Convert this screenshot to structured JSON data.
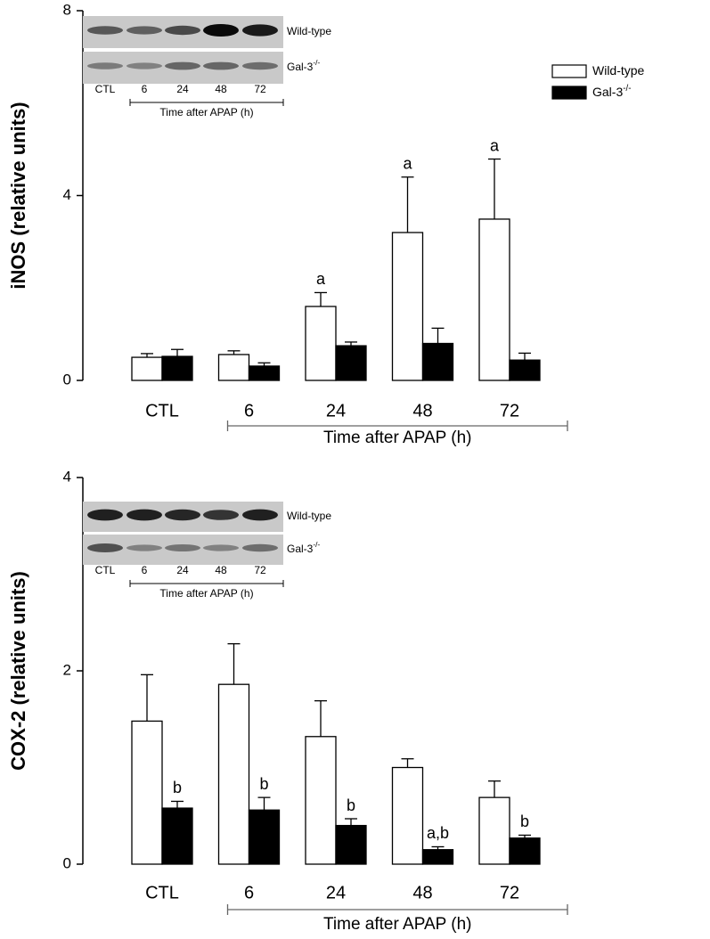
{
  "chart_data": [
    {
      "type": "bar",
      "ylabel": "iNOS (relative units)",
      "xlabel": "Time after APAP (h)",
      "categories": [
        "CTL",
        "6",
        "24",
        "48",
        "72"
      ],
      "ylim": [
        0,
        8
      ],
      "yticks": [
        0,
        4,
        8
      ],
      "legend": "upper right",
      "series": [
        {
          "name": "Wild-type",
          "color": "#ffffff",
          "values": [
            0.5,
            0.56,
            1.6,
            3.2,
            3.49
          ],
          "errors": [
            0.08,
            0.08,
            0.3,
            1.2,
            1.3
          ],
          "annotations": [
            null,
            null,
            "a",
            "a",
            "a"
          ]
        },
        {
          "name": "Gal-3",
          "name_superscript": "-/-",
          "color": "#000000",
          "values": [
            0.52,
            0.31,
            0.75,
            0.8,
            0.44
          ],
          "errors": [
            0.15,
            0.07,
            0.08,
            0.33,
            0.15
          ],
          "annotations": [
            null,
            null,
            null,
            null,
            null
          ]
        }
      ],
      "inset": {
        "rows": [
          {
            "name": "Wild-type"
          },
          {
            "name": "Gal-3",
            "superscript": "-/-"
          }
        ],
        "lanes": [
          "CTL",
          "6",
          "24",
          "48",
          "72"
        ],
        "label": "Time after APAP (h)"
      }
    },
    {
      "type": "bar",
      "ylabel": "COX-2 (relative units)",
      "xlabel": "Time after APAP (h)",
      "categories": [
        "CTL",
        "6",
        "24",
        "48",
        "72"
      ],
      "ylim": [
        0,
        4
      ],
      "yticks": [
        0,
        2,
        4
      ],
      "series": [
        {
          "color": "#ffffff",
          "values": [
            1.48,
            1.86,
            1.32,
            1.0,
            0.69
          ],
          "errors": [
            0.48,
            0.42,
            0.37,
            0.09,
            0.17
          ],
          "annotations": [
            null,
            null,
            null,
            null,
            null
          ]
        },
        {
          "color": "#000000",
          "values": [
            0.58,
            0.56,
            0.4,
            0.15,
            0.27
          ],
          "errors": [
            0.07,
            0.13,
            0.07,
            0.03,
            0.03
          ],
          "annotations": [
            "b",
            "b",
            "b",
            "a,b",
            "b"
          ]
        }
      ],
      "inset": {
        "rows": [
          {
            "name": "Wild-type"
          },
          {
            "name": "Gal-3",
            "superscript": "-/-"
          }
        ],
        "lanes": [
          "CTL",
          "6",
          "24",
          "48",
          "72"
        ],
        "label": "Time after APAP (h)"
      }
    }
  ]
}
